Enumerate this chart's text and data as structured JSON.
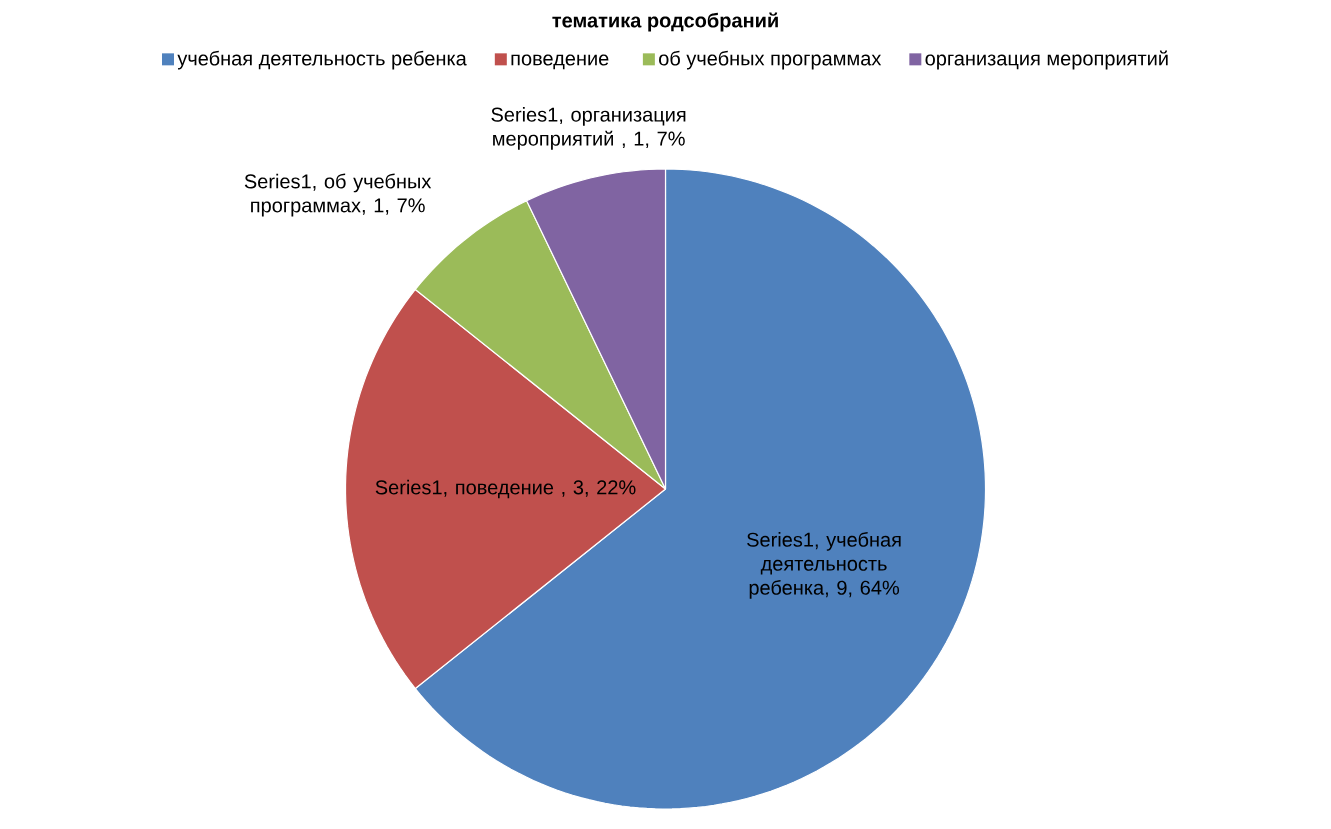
{
  "chart_data": {
    "type": "pie",
    "title": "тематика родсобраний",
    "categories": [
      "учебная деятельность ребенка",
      "поведение ",
      "об учебных программах",
      "организация мероприятий"
    ],
    "values": [
      9,
      3,
      1,
      1
    ],
    "colors": [
      "#4f81bd",
      "#c0504d",
      "#9bbb59",
      "#8064a2"
    ],
    "value_labels": [
      "Series1, учебная деятельность ребенка, 9, 64%",
      "Series1, поведение , 3, 22%",
      "Series1, об учебных программах, 1, 7%",
      "Series1, организация мероприятий , 1, 7%"
    ],
    "legend": "top"
  }
}
